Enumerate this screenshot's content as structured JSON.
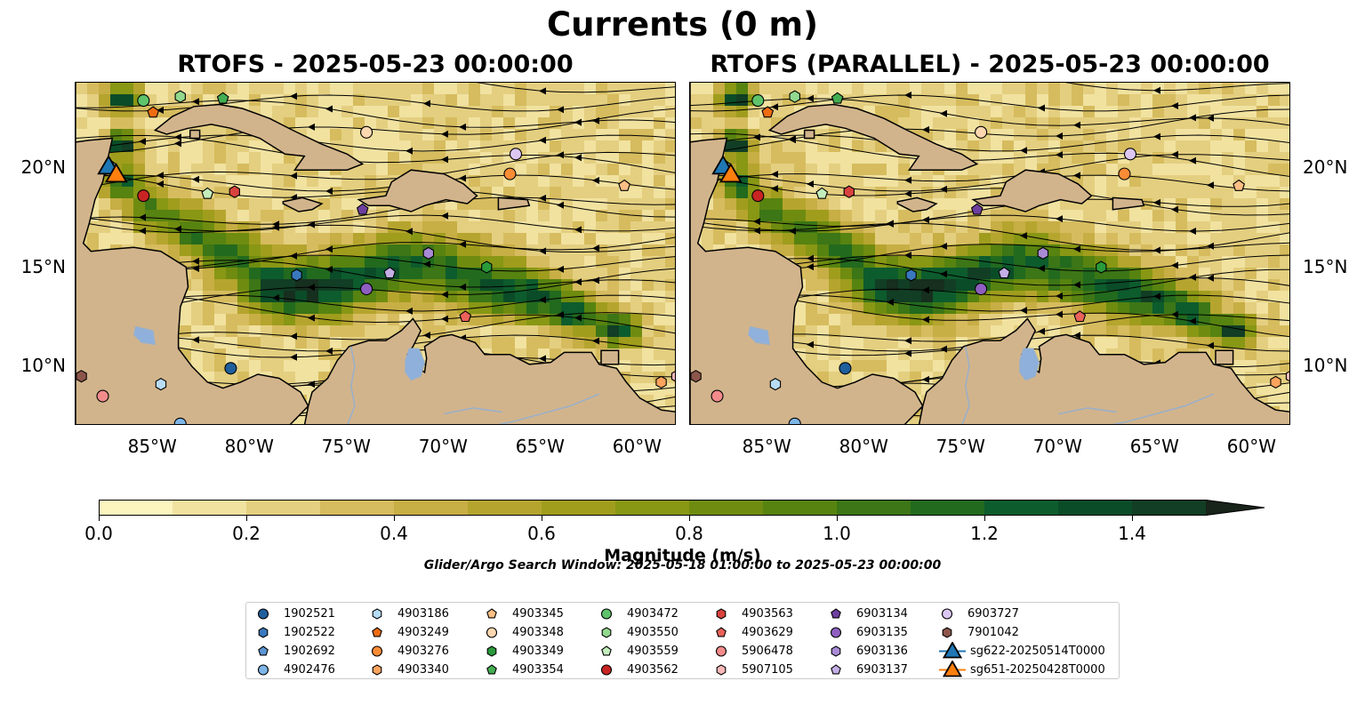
{
  "figure": {
    "suptitle": "Currents (0 m)",
    "window_note": "Glider/Argo Search Window: 2025-05-18 01:00:00 to 2025-05-23 00:00:00"
  },
  "colors": {
    "land": "#d2b48c",
    "lakes": "#8fb0da",
    "rivers": "#9bb0c8",
    "streamlines": "#000000",
    "colormap": [
      "#fdf5be",
      "#f1e2a0",
      "#e4cf80",
      "#d6bc5e",
      "#c7ae45",
      "#b5a52e",
      "#a09d1d",
      "#889714",
      "#6f8c10",
      "#578310",
      "#3c7616",
      "#226a1e",
      "#0d5c2d",
      "#0b4c28",
      "#113e24",
      "#162f1e",
      "#18231a"
    ]
  },
  "chart_data": [
    {
      "type": "heatmap",
      "title": "RTOFS - 2025-05-23 00:00:00",
      "quantity": "surface current magnitude with streamlines",
      "xlim": [
        -89,
        -58
      ],
      "ylim": [
        7,
        24.3
      ],
      "xticks": [
        -85,
        -80,
        -75,
        -70,
        -65,
        -60
      ],
      "xtick_labels": [
        "85°W",
        "80°W",
        "75°W",
        "70°W",
        "65°W",
        "60°W"
      ],
      "yticks": [
        10,
        15,
        20
      ],
      "ytick_labels": [
        "10°N",
        "15°N",
        "20°N"
      ],
      "ytick_side": "left"
    },
    {
      "type": "heatmap",
      "title": "RTOFS (PARALLEL) - 2025-05-23 00:00:00",
      "quantity": "surface current magnitude with streamlines",
      "xlim": [
        -89,
        -58
      ],
      "ylim": [
        7,
        24.3
      ],
      "xticks": [
        -85,
        -80,
        -75,
        -70,
        -65,
        -60
      ],
      "xtick_labels": [
        "85°W",
        "80°W",
        "75°W",
        "70°W",
        "65°W",
        "60°W"
      ],
      "yticks": [
        10,
        15,
        20
      ],
      "ytick_labels": [
        "10°N",
        "15°N",
        "20°N"
      ],
      "ytick_side": "right"
    }
  ],
  "colorbar": {
    "label": "Magnitude (m/s)",
    "min": 0.0,
    "max": 1.5,
    "step": 0.1,
    "extend": "max",
    "ticks": [
      0.0,
      0.2,
      0.4,
      0.6,
      0.8,
      1.0,
      1.2,
      1.4
    ],
    "tick_labels": [
      "0.0",
      "0.2",
      "0.4",
      "0.6",
      "0.8",
      "1.0",
      "1.2",
      "1.4"
    ]
  },
  "platforms": [
    {
      "id": "1902521",
      "marker": "circle",
      "color": "#1f5f9c",
      "lon": -81.0,
      "lat": 9.9
    },
    {
      "id": "1902522",
      "marker": "hexagon",
      "color": "#3a78bd",
      "lon": -77.6,
      "lat": 14.6
    },
    {
      "id": "1902692",
      "marker": "pentagon",
      "color": "#5b95d3",
      "lon": -87.2,
      "lat": 20.1
    },
    {
      "id": "4902476",
      "marker": "circle",
      "color": "#7eb6e8",
      "lon": -83.6,
      "lat": 7.1
    },
    {
      "id": "4903186",
      "marker": "hexagon",
      "color": "#b7dcf5",
      "lon": -84.6,
      "lat": 9.1
    },
    {
      "id": "4903249",
      "marker": "pentagon",
      "color": "#ee6c12",
      "lon": -85.0,
      "lat": 22.8
    },
    {
      "id": "4903276",
      "marker": "circle",
      "color": "#fb8c35",
      "lon": -66.6,
      "lat": 19.7
    },
    {
      "id": "4903340",
      "marker": "hexagon",
      "color": "#fda35e",
      "lon": -58.8,
      "lat": 9.2
    },
    {
      "id": "4903345",
      "marker": "pentagon",
      "color": "#fdbf85",
      "lon": -60.7,
      "lat": 19.1
    },
    {
      "id": "4903348",
      "marker": "circle",
      "color": "#fdd7b0",
      "lon": -74.0,
      "lat": 21.8
    },
    {
      "id": "4903349",
      "marker": "hexagon",
      "color": "#2a9a3a",
      "lon": -67.8,
      "lat": 15.0
    },
    {
      "id": "4903354",
      "marker": "pentagon",
      "color": "#43ae52",
      "lon": -81.4,
      "lat": 23.5
    },
    {
      "id": "4903472",
      "marker": "circle",
      "color": "#5fc36b",
      "lon": -85.5,
      "lat": 23.4
    },
    {
      "id": "4903550",
      "marker": "hexagon",
      "color": "#92d98e",
      "lon": -83.6,
      "lat": 23.6
    },
    {
      "id": "4903559",
      "marker": "pentagon",
      "color": "#c4edbc",
      "lon": -82.2,
      "lat": 18.7
    },
    {
      "id": "4903562",
      "marker": "circle",
      "color": "#c82423",
      "lon": -85.5,
      "lat": 18.6
    },
    {
      "id": "4903563",
      "marker": "hexagon",
      "color": "#d9433e",
      "lon": -80.8,
      "lat": 18.8
    },
    {
      "id": "4903629",
      "marker": "pentagon",
      "color": "#ea625a",
      "lon": -68.9,
      "lat": 12.5
    },
    {
      "id": "5906478",
      "marker": "circle",
      "color": "#f38b8b",
      "lon": -87.6,
      "lat": 8.5
    },
    {
      "id": "5907105",
      "marker": "hexagon",
      "color": "#f9b8b8",
      "lon": -58.0,
      "lat": 9.5
    },
    {
      "id": "6903134",
      "marker": "pentagon",
      "color": "#6f3fa0",
      "lon": -74.2,
      "lat": 17.9
    },
    {
      "id": "6903135",
      "marker": "circle",
      "color": "#8e5fc1",
      "lon": -74.0,
      "lat": 13.9
    },
    {
      "id": "6903136",
      "marker": "hexagon",
      "color": "#a98ad5",
      "lon": -70.8,
      "lat": 15.7
    },
    {
      "id": "6903137",
      "marker": "pentagon",
      "color": "#c4afe6",
      "lon": -72.8,
      "lat": 14.7
    },
    {
      "id": "6903727",
      "marker": "circle",
      "color": "#dcc7f2",
      "lon": -66.3,
      "lat": 20.7
    },
    {
      "id": "7901042",
      "marker": "hexagon",
      "color": "#8c564b",
      "lon": -88.7,
      "lat": 9.5
    },
    {
      "id": "sg622-20250514T0000",
      "marker": "triangle",
      "color": "#1f77b4",
      "lon": -87.3,
      "lat": 20.0
    },
    {
      "id": "sg651-20250428T0000",
      "marker": "triangle",
      "color": "#ff7f0e",
      "lon": -86.9,
      "lat": 19.6
    }
  ]
}
